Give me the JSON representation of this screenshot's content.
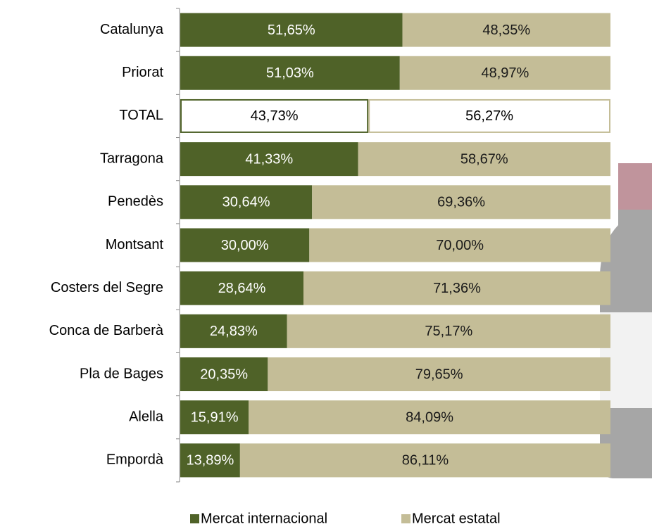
{
  "chart_data": {
    "type": "stacked-barh",
    "categories": [
      "Catalunya",
      "Priorat",
      "TOTAL",
      "Tarragona",
      "Penedès",
      "Montsant",
      "Costers del Segre",
      "Conca de Barberà",
      "Pla de Bages",
      "Alella",
      "Empordà"
    ],
    "series": [
      {
        "name": "Mercat internacional",
        "color": "#4f6228",
        "label_color": "#ffffff",
        "values": [
          51.65,
          51.03,
          43.73,
          41.33,
          30.64,
          30.0,
          28.64,
          24.83,
          20.35,
          15.91,
          13.89
        ],
        "value_labels": [
          "51,65%",
          "51,03%",
          "43,73%",
          "41,33%",
          "30,64%",
          "30,00%",
          "28,64%",
          "24,83%",
          "20,35%",
          "15,91%",
          "13,89%"
        ]
      },
      {
        "name": "Mercat estatal",
        "color": "#c4bd97",
        "label_color": "#1a1a1a",
        "values": [
          48.35,
          48.97,
          56.27,
          58.67,
          69.36,
          70.0,
          71.36,
          75.17,
          79.65,
          84.09,
          86.11
        ],
        "value_labels": [
          "48,35%",
          "48,97%",
          "56,27%",
          "58,67%",
          "69,36%",
          "70,00%",
          "71,36%",
          "75,17%",
          "79,65%",
          "84,09%",
          "86,11%"
        ]
      }
    ],
    "outlined_category": "TOTAL",
    "xlim": [
      0,
      100
    ],
    "legend": "bottom"
  }
}
